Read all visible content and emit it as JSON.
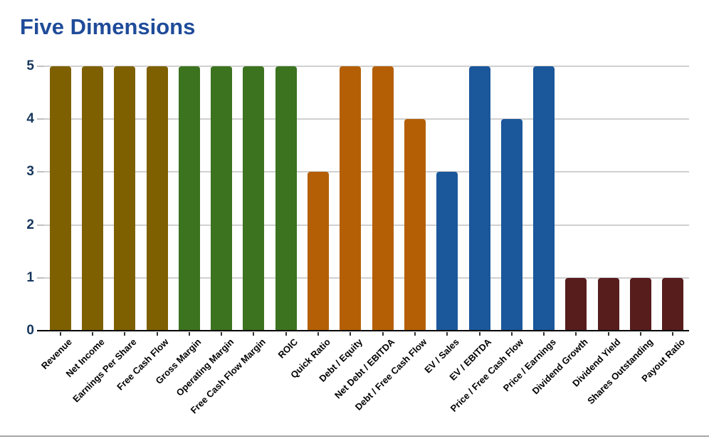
{
  "page": {
    "title": "Five Dimensions"
  },
  "chart_data": {
    "type": "bar",
    "title": "Five Dimensions",
    "xlabel": "",
    "ylabel": "",
    "ylim": [
      0,
      5
    ],
    "yticks": [
      0,
      1,
      2,
      3,
      4,
      5
    ],
    "grid": "horizontal",
    "legend": "none",
    "bars": [
      {
        "label": "Revenue",
        "value": 5,
        "group": "growth"
      },
      {
        "label": "Net Income",
        "value": 5,
        "group": "growth"
      },
      {
        "label": "Earnings Per Share",
        "value": 5,
        "group": "growth"
      },
      {
        "label": "Free Cash Flow",
        "value": 5,
        "group": "growth"
      },
      {
        "label": "Gross Margin",
        "value": 5,
        "group": "margins"
      },
      {
        "label": "Operating Margin",
        "value": 5,
        "group": "margins"
      },
      {
        "label": "Free Cash Flow Margin",
        "value": 5,
        "group": "margins"
      },
      {
        "label": "ROIC",
        "value": 5,
        "group": "margins"
      },
      {
        "label": "Quick Ratio",
        "value": 3,
        "group": "balance_sheet"
      },
      {
        "label": "Debt / Equity",
        "value": 5,
        "group": "balance_sheet"
      },
      {
        "label": "Net Debt / EBITDA",
        "value": 5,
        "group": "balance_sheet"
      },
      {
        "label": "Debt / Free Cash Flow",
        "value": 4,
        "group": "balance_sheet"
      },
      {
        "label": "EV / Sales",
        "value": 3,
        "group": "valuation"
      },
      {
        "label": "EV / EBITDA",
        "value": 5,
        "group": "valuation"
      },
      {
        "label": "Price / Free Cash Flow",
        "value": 4,
        "group": "valuation"
      },
      {
        "label": "Price / Earnings",
        "value": 5,
        "group": "valuation"
      },
      {
        "label": "Dividend Growth",
        "value": 1,
        "group": "shareholder"
      },
      {
        "label": "Dividend Yield",
        "value": 1,
        "group": "shareholder"
      },
      {
        "label": "Shares Outstanding",
        "value": 1,
        "group": "shareholder"
      },
      {
        "label": "Payout Ratio",
        "value": 1,
        "group": "shareholder"
      }
    ],
    "group_colors": {
      "growth": "#7F6000",
      "margins": "#3B731F",
      "balance_sheet": "#B45F06",
      "valuation": "#1B579B",
      "shareholder": "#571D1D"
    }
  },
  "colors": {
    "title_text": "#1F4B99",
    "axis_label_text": "#16365C",
    "x_label_text": "#000000",
    "gridline": "#D0D0D0",
    "axis_line": "#000000",
    "y_tick": "#C0C0C0",
    "x_tick": "#333333",
    "footer_line": "#A6A6A6",
    "background": "#FFFFFF"
  }
}
